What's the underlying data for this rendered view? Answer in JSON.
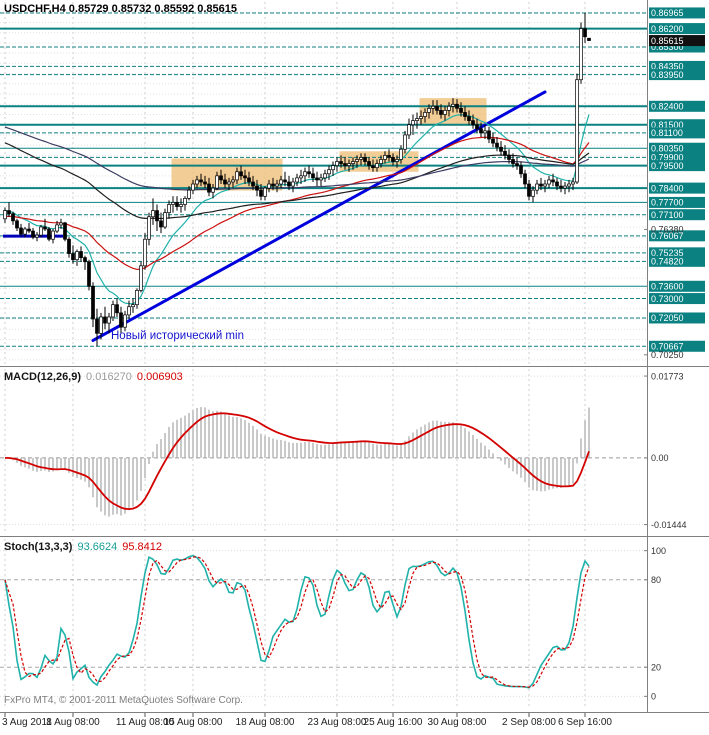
{
  "window": {
    "app": "MetaTrader 4 chart"
  },
  "footer": {
    "copyright": "FxPro MT4, © 2001-2011 MetaQuotes Software Corp."
  },
  "time_axis": {
    "labels": [
      {
        "text": "3 Aug 2011",
        "index": 0
      },
      {
        "text": "8 Aug 08:00",
        "index": 17
      },
      {
        "text": "11 Aug 08:00",
        "index": 35
      },
      {
        "text": "15 Aug 08:00",
        "index": 47
      },
      {
        "text": "18 Aug 08:00",
        "index": 65
      },
      {
        "text": "23 Aug 08:00",
        "index": 83
      },
      {
        "text": "25 Aug 16:00",
        "index": 97
      },
      {
        "text": "30 Aug 08:00",
        "index": 113
      },
      {
        "text": "2 Sep 08:00",
        "index": 131
      },
      {
        "text": "6 Sep 16:00",
        "index": 145
      }
    ]
  },
  "chart_data": [
    {
      "type": "candlestick",
      "title_line": "USDCHF,H4 0.85729 0.85732 0.85592 0.85615",
      "symbol": "USDCHF",
      "period": "H4",
      "ohlc_display": {
        "open": "0.85729",
        "high": "0.85732",
        "low": "0.85592",
        "close": "0.85615"
      },
      "ylim": [
        0.698,
        0.875
      ],
      "grid_step": 0.005,
      "current_price": {
        "value": 0.85615,
        "label": "0.85615",
        "box_color": "#111111"
      },
      "annotation": {
        "text": "Новый исторический min",
        "index": 26.5,
        "price": 0.7125,
        "color": "#1414cf"
      },
      "levels": [
        {
          "price": 0.86965,
          "label": "0.86965",
          "style": "dashed",
          "w": 1
        },
        {
          "price": 0.862,
          "label": "0.86200",
          "style": "solid",
          "w": 2
        },
        {
          "price": 0.853,
          "label": "0.85300",
          "style": "dashed",
          "w": 1
        },
        {
          "price": 0.8435,
          "label": "0.84350",
          "style": "dashed",
          "w": 1
        },
        {
          "price": 0.8395,
          "label": "0.83950",
          "style": "dashed",
          "w": 1
        },
        {
          "price": 0.824,
          "label": "0.82400",
          "style": "solid",
          "w": 2
        },
        {
          "price": 0.815,
          "label": "0.81500",
          "style": "solid",
          "w": 2
        },
        {
          "price": 0.811,
          "label": "0.81100",
          "style": "dashed",
          "w": 1
        },
        {
          "price": 0.8035,
          "label": "0.80350",
          "style": "solid",
          "w": 1
        },
        {
          "price": 0.799,
          "label": "0.79900",
          "style": "dashed",
          "w": 1
        },
        {
          "price": 0.795,
          "label": "0.79500",
          "style": "solid",
          "w": 2
        },
        {
          "price": 0.784,
          "label": "0.78400",
          "style": "solid",
          "w": 2
        },
        {
          "price": 0.777,
          "label": "0.77700",
          "style": "solid",
          "w": 1
        },
        {
          "price": 0.771,
          "label": "0.77100",
          "style": "dashed",
          "w": 1
        },
        {
          "price": 0.76067,
          "label": "0.76067",
          "style": "dashed",
          "w": 1
        },
        {
          "price": 0.75235,
          "label": "0.75235",
          "style": "dashed",
          "w": 1
        },
        {
          "price": 0.7482,
          "label": "0.74820",
          "style": "dashed",
          "w": 1
        },
        {
          "price": 0.736,
          "label": "0.73600",
          "style": "solid",
          "w": 1
        },
        {
          "price": 0.73,
          "label": "0.73000",
          "style": "dashed",
          "w": 1
        },
        {
          "price": 0.7205,
          "label": "0.72050",
          "style": "dashed",
          "w": 1
        },
        {
          "price": 0.70667,
          "label": "0.70667",
          "style": "dashed",
          "w": 1
        }
      ],
      "axis_plain_labels": [
        {
          "price": 0.7638,
          "label": "0.76380"
        },
        {
          "price": 0.7025,
          "label": "0.70250"
        }
      ],
      "trendline": {
        "from": {
          "index": 22,
          "price": 0.7095
        },
        "to": {
          "index": 135,
          "price": 0.831
        },
        "color": "#0000dd",
        "width": 3
      },
      "support_segment": {
        "from_index": -0.5,
        "to_index": 14.5,
        "price": 0.7605,
        "color": "#0000b8",
        "width": 3
      },
      "boxes": [
        {
          "i0": 42,
          "i1": 69,
          "p_low": 0.7828,
          "p_high": 0.7985
        },
        {
          "i0": 84,
          "i1": 103,
          "p_low": 0.792,
          "p_high": 0.802
        },
        {
          "i0": 104,
          "i1": 120,
          "p_low": 0.8145,
          "p_high": 0.828
        }
      ],
      "box_color": "#f0c484",
      "moving_averages": [
        {
          "period": 12,
          "seed": null,
          "color": "#20b2aa"
        },
        {
          "period": 40,
          "seed": 0.77,
          "color": "#cc1111"
        },
        {
          "period": 80,
          "seed": 0.807,
          "color": "#202020"
        },
        {
          "period": 130,
          "seed": 0.8145,
          "color": "#3c3c64"
        }
      ],
      "level_color": "#0c8181",
      "candles": [
        [
          0.769,
          0.7745,
          0.767,
          0.773
        ],
        [
          0.773,
          0.777,
          0.77,
          0.7715
        ],
        [
          0.7715,
          0.7725,
          0.766,
          0.768
        ],
        [
          0.768,
          0.769,
          0.763,
          0.7645
        ],
        [
          0.7645,
          0.7665,
          0.7605,
          0.7615
        ],
        [
          0.7615,
          0.765,
          0.76,
          0.764
        ],
        [
          0.764,
          0.767,
          0.762,
          0.763
        ],
        [
          0.763,
          0.7645,
          0.759,
          0.76
        ],
        [
          0.76,
          0.7625,
          0.758,
          0.761
        ],
        [
          0.761,
          0.766,
          0.76,
          0.765
        ],
        [
          0.765,
          0.769,
          0.763,
          0.764
        ],
        [
          0.764,
          0.765,
          0.758,
          0.759
        ],
        [
          0.759,
          0.764,
          0.757,
          0.763
        ],
        [
          0.763,
          0.768,
          0.762,
          0.766
        ],
        [
          0.766,
          0.769,
          0.764,
          0.767
        ],
        [
          0.767,
          0.7675,
          0.758,
          0.759
        ],
        [
          0.759,
          0.76,
          0.75,
          0.752
        ],
        [
          0.752,
          0.756,
          0.747,
          0.749
        ],
        [
          0.749,
          0.754,
          0.746,
          0.753
        ],
        [
          0.753,
          0.7555,
          0.748,
          0.75
        ],
        [
          0.75,
          0.751,
          0.744,
          0.748
        ],
        [
          0.748,
          0.749,
          0.734,
          0.736
        ],
        [
          0.736,
          0.738,
          0.716,
          0.72
        ],
        [
          0.72,
          0.725,
          0.7067,
          0.713
        ],
        [
          0.713,
          0.723,
          0.71,
          0.721
        ],
        [
          0.721,
          0.726,
          0.715,
          0.718
        ],
        [
          0.718,
          0.723,
          0.713,
          0.721
        ],
        [
          0.721,
          0.729,
          0.719,
          0.727
        ],
        [
          0.727,
          0.73,
          0.721,
          0.723
        ],
        [
          0.723,
          0.726,
          0.713,
          0.716
        ],
        [
          0.716,
          0.724,
          0.714,
          0.722
        ],
        [
          0.722,
          0.729,
          0.72,
          0.726
        ],
        [
          0.726,
          0.73,
          0.723,
          0.727
        ],
        [
          0.727,
          0.735,
          0.725,
          0.734
        ],
        [
          0.734,
          0.748,
          0.733,
          0.746
        ],
        [
          0.746,
          0.762,
          0.744,
          0.759
        ],
        [
          0.759,
          0.772,
          0.756,
          0.77
        ],
        [
          0.77,
          0.779,
          0.766,
          0.773
        ],
        [
          0.773,
          0.776,
          0.763,
          0.768
        ],
        [
          0.768,
          0.772,
          0.762,
          0.765
        ],
        [
          0.765,
          0.774,
          0.764,
          0.772
        ],
        [
          0.772,
          0.778,
          0.769,
          0.776
        ],
        [
          0.776,
          0.78,
          0.772,
          0.777
        ],
        [
          0.777,
          0.78,
          0.773,
          0.775
        ],
        [
          0.775,
          0.779,
          0.772,
          0.776
        ],
        [
          0.776,
          0.78,
          0.773,
          0.779
        ],
        [
          0.779,
          0.785,
          0.778,
          0.783
        ],
        [
          0.783,
          0.788,
          0.781,
          0.786
        ],
        [
          0.786,
          0.79,
          0.784,
          0.788
        ],
        [
          0.788,
          0.791,
          0.785,
          0.787
        ],
        [
          0.787,
          0.79,
          0.784,
          0.786
        ],
        [
          0.786,
          0.789,
          0.78,
          0.782
        ],
        [
          0.782,
          0.786,
          0.779,
          0.784
        ],
        [
          0.784,
          0.792,
          0.783,
          0.79
        ],
        [
          0.79,
          0.793,
          0.786,
          0.788
        ],
        [
          0.788,
          0.791,
          0.784,
          0.786
        ],
        [
          0.786,
          0.789,
          0.783,
          0.787
        ],
        [
          0.787,
          0.79,
          0.784,
          0.788
        ],
        [
          0.788,
          0.794,
          0.786,
          0.792
        ],
        [
          0.792,
          0.795,
          0.788,
          0.79
        ],
        [
          0.79,
          0.793,
          0.786,
          0.789
        ],
        [
          0.789,
          0.792,
          0.785,
          0.787
        ],
        [
          0.787,
          0.79,
          0.783,
          0.785
        ],
        [
          0.785,
          0.788,
          0.78,
          0.783
        ],
        [
          0.783,
          0.786,
          0.778,
          0.78
        ],
        [
          0.78,
          0.785,
          0.778,
          0.784
        ],
        [
          0.784,
          0.788,
          0.782,
          0.786
        ],
        [
          0.786,
          0.789,
          0.783,
          0.785
        ],
        [
          0.785,
          0.788,
          0.782,
          0.786
        ],
        [
          0.786,
          0.79,
          0.784,
          0.788
        ],
        [
          0.788,
          0.792,
          0.785,
          0.787
        ],
        [
          0.787,
          0.79,
          0.783,
          0.785
        ],
        [
          0.785,
          0.789,
          0.782,
          0.787
        ],
        [
          0.787,
          0.791,
          0.785,
          0.789
        ],
        [
          0.789,
          0.793,
          0.786,
          0.79
        ],
        [
          0.79,
          0.794,
          0.787,
          0.792
        ],
        [
          0.792,
          0.795,
          0.789,
          0.791
        ],
        [
          0.791,
          0.794,
          0.787,
          0.789
        ],
        [
          0.789,
          0.792,
          0.785,
          0.788
        ],
        [
          0.788,
          0.791,
          0.785,
          0.789
        ],
        [
          0.789,
          0.793,
          0.787,
          0.791
        ],
        [
          0.791,
          0.795,
          0.788,
          0.793
        ],
        [
          0.793,
          0.797,
          0.79,
          0.795
        ],
        [
          0.795,
          0.799,
          0.792,
          0.797
        ],
        [
          0.797,
          0.8,
          0.794,
          0.796
        ],
        [
          0.796,
          0.799,
          0.793,
          0.795
        ],
        [
          0.795,
          0.798,
          0.792,
          0.796
        ],
        [
          0.796,
          0.799,
          0.793,
          0.797
        ],
        [
          0.797,
          0.8,
          0.794,
          0.798
        ],
        [
          0.798,
          0.801,
          0.795,
          0.799
        ],
        [
          0.799,
          0.801,
          0.795,
          0.797
        ],
        [
          0.797,
          0.799,
          0.793,
          0.795
        ],
        [
          0.795,
          0.798,
          0.792,
          0.794
        ],
        [
          0.794,
          0.798,
          0.792,
          0.796
        ],
        [
          0.796,
          0.8,
          0.794,
          0.798
        ],
        [
          0.798,
          0.802,
          0.796,
          0.8
        ],
        [
          0.8,
          0.803,
          0.797,
          0.799
        ],
        [
          0.799,
          0.801,
          0.795,
          0.797
        ],
        [
          0.797,
          0.8,
          0.794,
          0.798
        ],
        [
          0.798,
          0.805,
          0.796,
          0.803
        ],
        [
          0.803,
          0.812,
          0.801,
          0.81
        ],
        [
          0.81,
          0.818,
          0.808,
          0.815
        ],
        [
          0.815,
          0.82,
          0.81,
          0.817
        ],
        [
          0.817,
          0.821,
          0.813,
          0.818
        ],
        [
          0.818,
          0.822,
          0.815,
          0.819
        ],
        [
          0.819,
          0.823,
          0.816,
          0.821
        ],
        [
          0.821,
          0.825,
          0.818,
          0.823
        ],
        [
          0.823,
          0.827,
          0.82,
          0.824
        ],
        [
          0.824,
          0.827,
          0.82,
          0.822
        ],
        [
          0.822,
          0.825,
          0.818,
          0.82
        ],
        [
          0.82,
          0.824,
          0.817,
          0.822
        ],
        [
          0.822,
          0.826,
          0.819,
          0.824
        ],
        [
          0.824,
          0.828,
          0.821,
          0.825
        ],
        [
          0.825,
          0.8275,
          0.821,
          0.823
        ],
        [
          0.823,
          0.826,
          0.819,
          0.821
        ],
        [
          0.821,
          0.824,
          0.817,
          0.819
        ],
        [
          0.819,
          0.822,
          0.815,
          0.817
        ],
        [
          0.817,
          0.82,
          0.813,
          0.815
        ],
        [
          0.815,
          0.818,
          0.811,
          0.813
        ],
        [
          0.813,
          0.816,
          0.809,
          0.811
        ],
        [
          0.811,
          0.815,
          0.808,
          0.812
        ],
        [
          0.812,
          0.814,
          0.806,
          0.808
        ],
        [
          0.808,
          0.811,
          0.804,
          0.806
        ],
        [
          0.806,
          0.809,
          0.802,
          0.804
        ],
        [
          0.804,
          0.807,
          0.8,
          0.802
        ],
        [
          0.802,
          0.805,
          0.798,
          0.8
        ],
        [
          0.8,
          0.803,
          0.796,
          0.798
        ],
        [
          0.798,
          0.801,
          0.794,
          0.796
        ],
        [
          0.796,
          0.799,
          0.793,
          0.795
        ],
        [
          0.795,
          0.797,
          0.789,
          0.791
        ],
        [
          0.791,
          0.793,
          0.784,
          0.786
        ],
        [
          0.786,
          0.788,
          0.778,
          0.78
        ],
        [
          0.78,
          0.785,
          0.777,
          0.783
        ],
        [
          0.783,
          0.788,
          0.781,
          0.786
        ],
        [
          0.786,
          0.789,
          0.783,
          0.785
        ],
        [
          0.785,
          0.788,
          0.782,
          0.786
        ],
        [
          0.786,
          0.79,
          0.784,
          0.788
        ],
        [
          0.788,
          0.791,
          0.785,
          0.787
        ],
        [
          0.787,
          0.789,
          0.783,
          0.785
        ],
        [
          0.785,
          0.788,
          0.782,
          0.784
        ],
        [
          0.784,
          0.787,
          0.781,
          0.785
        ],
        [
          0.785,
          0.788,
          0.782,
          0.786
        ],
        [
          0.786,
          0.789,
          0.783,
          0.787
        ],
        [
          0.787,
          0.84,
          0.786,
          0.837
        ],
        [
          0.837,
          0.865,
          0.835,
          0.862
        ],
        [
          0.862,
          0.8697,
          0.855,
          0.858
        ],
        [
          0.85729,
          0.85732,
          0.85592,
          0.85615
        ]
      ]
    },
    {
      "type": "bar",
      "subtype": "macd-histogram",
      "title": "MACD(12,26,9)",
      "values_display": [
        "0.016270",
        "0.006903"
      ],
      "params": {
        "fast": 12,
        "slow": 26,
        "signal": 9
      },
      "ylim": [
        -0.01605,
        0.01926
      ],
      "axis_labels": [
        {
          "v": 0.01773,
          "label": "0.01773"
        },
        {
          "v": 0,
          "label": "0.00"
        },
        {
          "v": -0.01444,
          "label": "-0.01444"
        }
      ],
      "colors": {
        "histogram": "#b2b2b2",
        "signal": "#d40000"
      }
    },
    {
      "type": "line",
      "subtype": "stochastic",
      "title": "Stoch(13,3,3)",
      "values_display": [
        "93.6624",
        "95.8412"
      ],
      "params": {
        "k": 13,
        "d": 3,
        "slowing": 3
      },
      "ylim": [
        -8,
        108
      ],
      "levels": [
        {
          "v": 100,
          "label": "100",
          "dashed": false
        },
        {
          "v": 80,
          "label": "80",
          "dashed": true
        },
        {
          "v": 20,
          "label": "20",
          "dashed": true
        },
        {
          "v": 0,
          "label": "0",
          "dashed": false
        }
      ],
      "colors": {
        "main": "#20b2aa",
        "signal": "#d40000"
      }
    }
  ]
}
